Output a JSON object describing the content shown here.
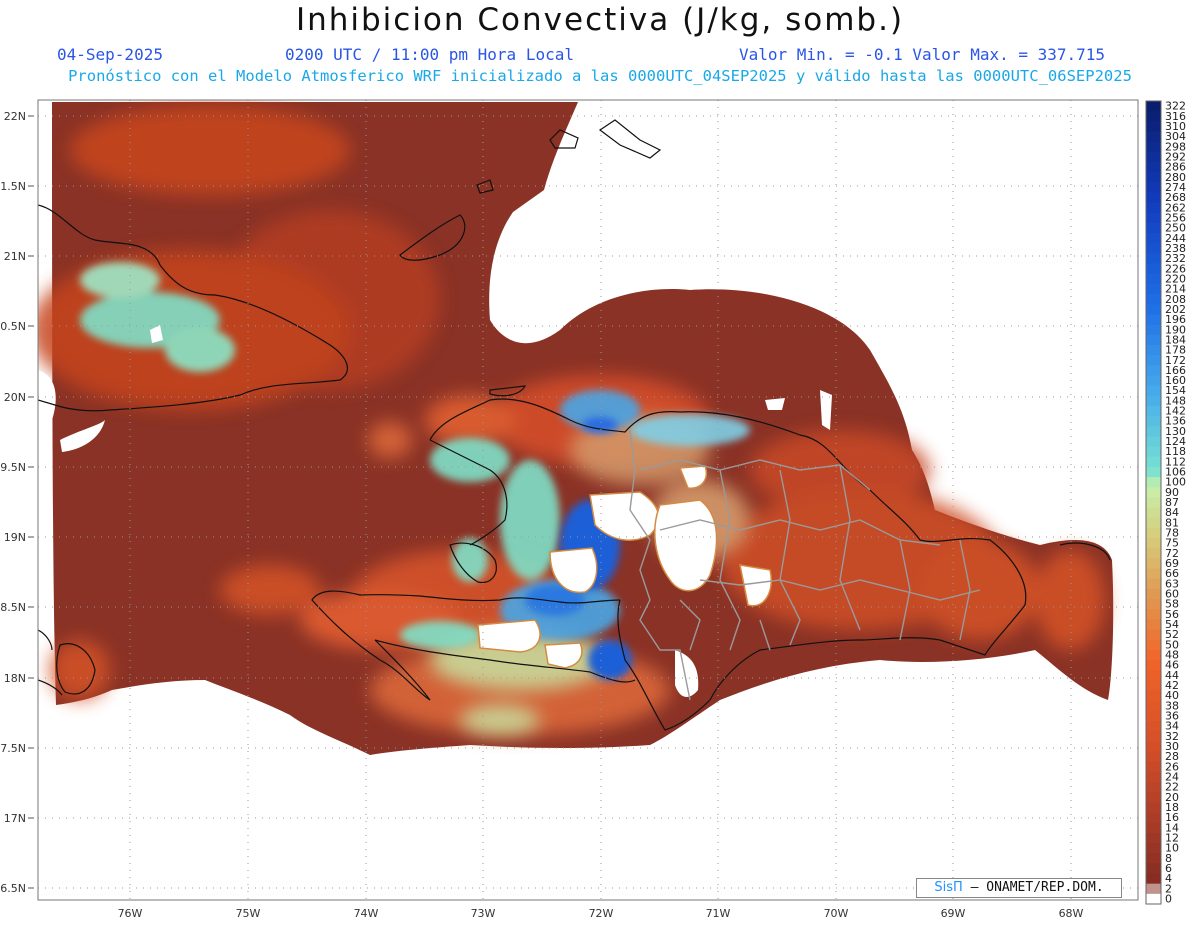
{
  "title": "Inhibicion Convectiva (J/kg, somb.)",
  "date": "04-Sep-2025",
  "time": "0200 UTC / 11:00 pm Hora Local",
  "stats": "Valor Min. = -0.1  Valor Max. = 337.715",
  "subtitle": "Pronóstico con el Modelo Atmosferico WRF inicializado a las 0000UTC_04SEP2025 y válido hasta las  0000UTC_06SEP2025",
  "credit_sis": "SisΠ",
  "credit_rest": " – ONAMET/REP.DOM.",
  "lat_labels": [
    "22N",
    "1.5N",
    "21N",
    "0.5N",
    "20N",
    "9.5N",
    "19N",
    "8.5N",
    "18N",
    "7.5N",
    "17N",
    "6.5N"
  ],
  "lon_labels": [
    "76W",
    "75W",
    "74W",
    "73W",
    "72W",
    "71W",
    "70W",
    "69W",
    "68W"
  ],
  "colorbar": {
    "labels": [
      "322",
      "316",
      "310",
      "304",
      "298",
      "292",
      "286",
      "280",
      "274",
      "268",
      "262",
      "256",
      "250",
      "244",
      "238",
      "232",
      "226",
      "220",
      "214",
      "208",
      "202",
      "196",
      "190",
      "184",
      "178",
      "172",
      "166",
      "160",
      "154",
      "148",
      "142",
      "136",
      "130",
      "124",
      "118",
      "112",
      "106",
      "100",
      "90",
      "87",
      "84",
      "81",
      "78",
      "75",
      "72",
      "69",
      "66",
      "63",
      "60",
      "58",
      "56",
      "54",
      "52",
      "50",
      "48",
      "46",
      "44",
      "42",
      "40",
      "38",
      "36",
      "34",
      "32",
      "30",
      "28",
      "26",
      "24",
      "22",
      "20",
      "18",
      "16",
      "14",
      "12",
      "10",
      "8",
      "6",
      "4",
      "2",
      "0"
    ]
  },
  "colors": {
    "background_field": "#8a3226",
    "high_cin": "#1e5fd6",
    "mid_cin": "#7fe0c8",
    "low_cin": "#e8562a"
  }
}
